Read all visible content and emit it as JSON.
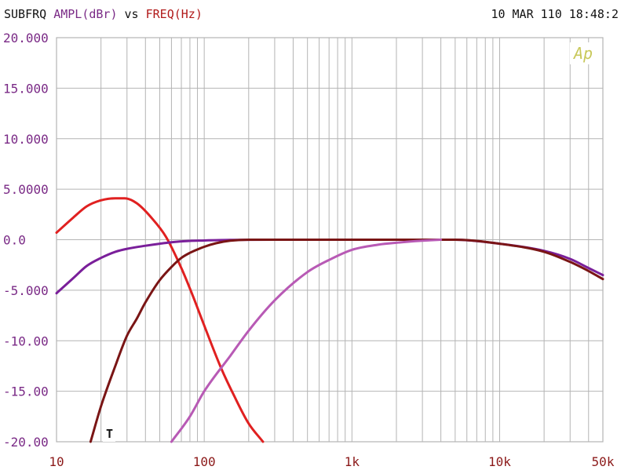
{
  "header": {
    "title": "SUBFRQ",
    "y_quantity": "AMPL(dBr)",
    "vs": "vs",
    "x_quantity": "FREQ(Hz)",
    "date": "10 MAR 110",
    "time": "18:48:2"
  },
  "logo_text": "Ap",
  "marker_label": "T",
  "colors": {
    "grid": "#b4b4b4",
    "frame": "#b4b4b4",
    "y_tick_text": "#7a2a86",
    "x_tick_text": "#8c1a1a",
    "header_text": "#111111",
    "y_quantity_text": "#7a2a86",
    "x_quantity_text": "#b01818",
    "logo": "#c8c85a"
  },
  "chart_data": {
    "type": "line",
    "x_scale": "log",
    "xlim": [
      10,
      50000
    ],
    "ylim": [
      -20,
      20
    ],
    "xlabel": "FREQ(Hz)",
    "ylabel": "AMPL(dBr)",
    "grid": true,
    "x_ticks": [
      {
        "value": 10,
        "label": "10"
      },
      {
        "value": 100,
        "label": "100"
      },
      {
        "value": 1000,
        "label": "1k"
      },
      {
        "value": 10000,
        "label": "10k"
      },
      {
        "value": 50000,
        "label": "50k"
      }
    ],
    "y_ticks": [
      {
        "value": 20,
        "label": "20.000"
      },
      {
        "value": 15,
        "label": "15.000"
      },
      {
        "value": 10,
        "label": "10.000"
      },
      {
        "value": 5,
        "label": "5.0000"
      },
      {
        "value": 0,
        "label": "0.0"
      },
      {
        "value": -5,
        "label": "-5.000"
      },
      {
        "value": -10,
        "label": "-10.00"
      },
      {
        "value": -15,
        "label": "-15.00"
      },
      {
        "value": -20,
        "label": "-20.00"
      }
    ],
    "series": [
      {
        "color": "#e02020",
        "x": [
          10,
          13,
          16,
          20,
          25,
          29,
          35,
          45,
          55,
          70,
          85,
          100,
          130,
          160,
          200,
          250
        ],
        "y": [
          0.7,
          2.2,
          3.3,
          3.9,
          4.1,
          4.1,
          3.6,
          2.0,
          0.3,
          -2.8,
          -5.8,
          -8.5,
          -12.7,
          -15.5,
          -18.2,
          -20
        ]
      },
      {
        "color": "#7a1f9a",
        "x": [
          10,
          13,
          16,
          20,
          25,
          30,
          40,
          50,
          60,
          80,
          100,
          150,
          300,
          1000,
          5000,
          10000,
          20000,
          30000,
          40000,
          50000
        ],
        "y": [
          -5.3,
          -3.8,
          -2.6,
          -1.8,
          -1.2,
          -0.9,
          -0.6,
          -0.4,
          -0.25,
          -0.12,
          -0.08,
          -0.02,
          0,
          0,
          0,
          -0.4,
          -1.1,
          -1.9,
          -2.8,
          -3.5
        ]
      },
      {
        "color": "#7a1515",
        "x": [
          17,
          20,
          25,
          30,
          35,
          40,
          50,
          60,
          70,
          80,
          100,
          120,
          150,
          200,
          500,
          1000,
          5000,
          10000,
          20000,
          30000,
          40000,
          50000
        ],
        "y": [
          -20,
          -16.5,
          -12.5,
          -9.5,
          -7.8,
          -6.2,
          -4.0,
          -2.7,
          -1.8,
          -1.3,
          -0.7,
          -0.35,
          -0.1,
          0,
          0,
          0,
          0,
          -0.4,
          -1.2,
          -2.2,
          -3.1,
          -3.9
        ]
      },
      {
        "color": "#b85ab5",
        "x": [
          60,
          80,
          100,
          150,
          200,
          300,
          500,
          700,
          1000,
          1500,
          2000,
          3000,
          4000
        ],
        "y": [
          -20,
          -17.5,
          -15.0,
          -11.5,
          -9.0,
          -6.0,
          -3.2,
          -2.0,
          -1.0,
          -0.5,
          -0.3,
          -0.1,
          0
        ]
      }
    ]
  }
}
